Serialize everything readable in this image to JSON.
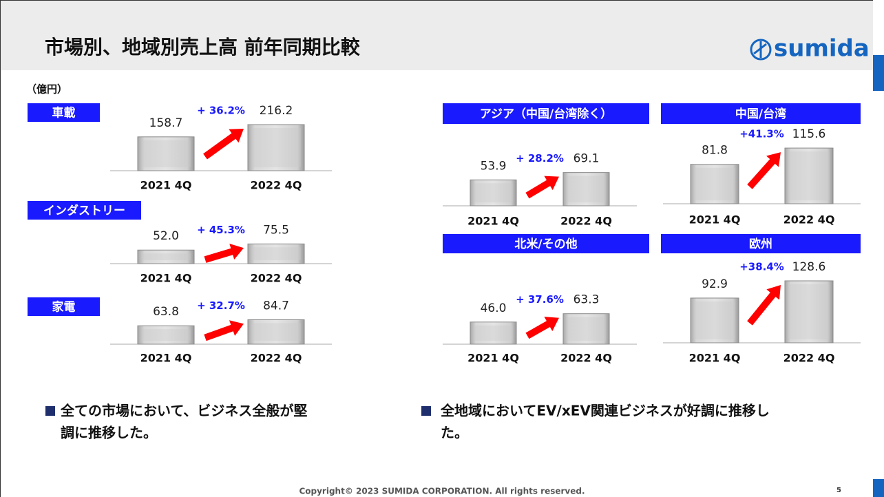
{
  "header": {
    "title": "市場別、地域別売上高 前年同期比較",
    "logo": "sumida"
  },
  "unit": "（億円）",
  "chart_data": [
    {
      "type": "bar",
      "title": "車載",
      "categories": [
        "2021 4Q",
        "2022 4Q"
      ],
      "values": [
        158.7,
        216.2
      ],
      "annotation": "+ 36.2%",
      "color": "#c8c8c8",
      "arrow_color": "#ff0000"
    },
    {
      "type": "bar",
      "title": "インダストリー",
      "categories": [
        "2021 4Q",
        "2022 4Q"
      ],
      "values": [
        52.0,
        75.5
      ],
      "value_labels": [
        "52.0",
        "75.5"
      ],
      "annotation": "+ 45.3%",
      "color": "#c8c8c8",
      "arrow_color": "#ff0000"
    },
    {
      "type": "bar",
      "title": "家電",
      "categories": [
        "2021 4Q",
        "2022 4Q"
      ],
      "values": [
        63.8,
        84.7
      ],
      "annotation": "+ 32.7%",
      "color": "#c8c8c8",
      "arrow_color": "#ff0000"
    },
    {
      "type": "bar",
      "title": "アジア（中国/台湾除く）",
      "categories": [
        "2021 4Q",
        "2022 4Q"
      ],
      "values": [
        53.9,
        69.1
      ],
      "annotation": "+ 28.2%",
      "color": "#c8c8c8",
      "arrow_color": "#ff0000"
    },
    {
      "type": "bar",
      "title": "中国/台湾",
      "categories": [
        "2021 4Q",
        "2022 4Q"
      ],
      "values": [
        81.8,
        115.6
      ],
      "annotation": "+41.3%",
      "color": "#c8c8c8",
      "arrow_color": "#ff0000"
    },
    {
      "type": "bar",
      "title": "北米/その他",
      "categories": [
        "2021 4Q",
        "2022 4Q"
      ],
      "values": [
        46.0,
        63.3
      ],
      "value_labels": [
        "46.0",
        "63.3"
      ],
      "annotation": "+ 37.6%",
      "color": "#c8c8c8",
      "arrow_color": "#ff0000"
    },
    {
      "type": "bar",
      "title": "欧州",
      "categories": [
        "2021 4Q",
        "2022 4Q"
      ],
      "values": [
        92.9,
        128.6
      ],
      "annotation": "+38.4%",
      "color": "#c8c8c8",
      "arrow_color": "#ff0000"
    }
  ],
  "bullets": [
    [
      "全ての市場において、ビジネス全般が堅",
      "調に推移した。"
    ],
    [
      "全地域においてEV/xEV関連ビジネスが好調に推移し",
      "た。"
    ]
  ],
  "footer": {
    "copyright": "Copyright© 2023 SUMIDA CORPORATION. All rights reserved.",
    "page": "5"
  }
}
